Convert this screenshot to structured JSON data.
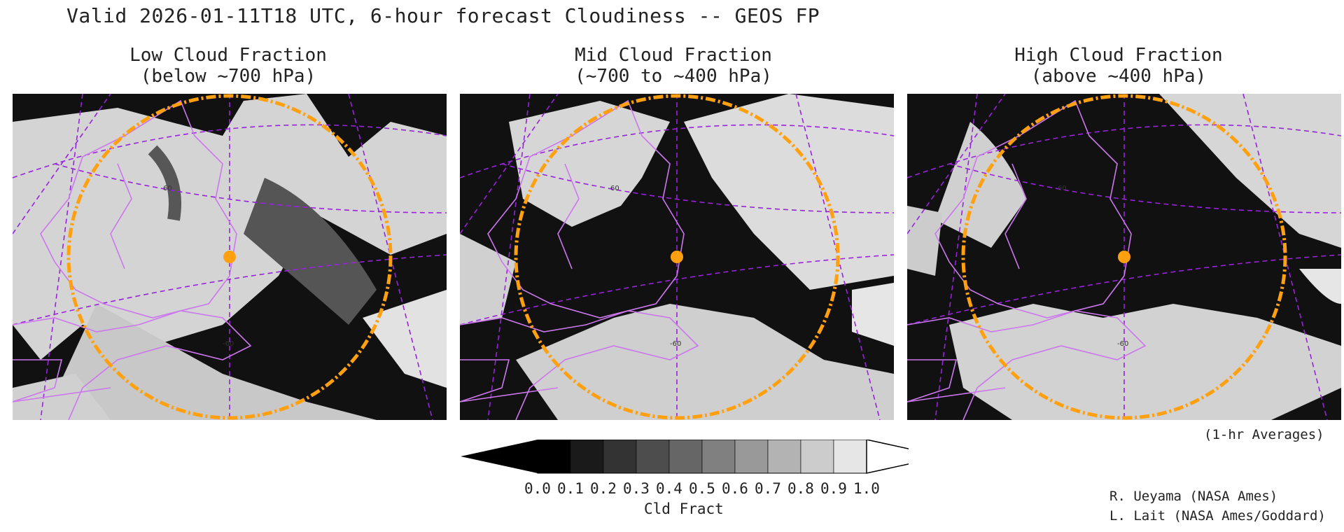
{
  "header": {
    "title": "Valid 2026-01-11T18 UTC, 6-hour forecast Cloudiness -- GEOS FP"
  },
  "panels": [
    {
      "line1": "Low Cloud Fraction",
      "line2": "(below ~700 hPa)"
    },
    {
      "line1": "Mid Cloud Fraction",
      "line2": "(~700 to ~400 hPa)"
    },
    {
      "line1": "High Cloud Fraction",
      "line2": "(above ~400 hPa)"
    }
  ],
  "map_labels": {
    "lat_label": "60",
    "lon_label": "-60"
  },
  "colorbar": {
    "label": "Cld Fract",
    "ticks": [
      "0.0",
      "0.1",
      "0.2",
      "0.3",
      "0.4",
      "0.5",
      "0.6",
      "0.7",
      "0.8",
      "0.9",
      "1.0"
    ],
    "colors": [
      "#000000",
      "#1a1a1a",
      "#333333",
      "#4d4d4d",
      "#666666",
      "#808080",
      "#999999",
      "#b3b3b3",
      "#cccccc",
      "#e6e6e6"
    ]
  },
  "notes": {
    "averages": "(1-hr Averages)",
    "credit1": "R. Ueyama (NASA Ames)",
    "credit2": "L. Lait (NASA Ames/Goddard)"
  },
  "colors": {
    "range_ring": "#ffa010",
    "borders": "#cc77ee",
    "graticule": "#9922dd",
    "site_marker": "#ffa010"
  }
}
